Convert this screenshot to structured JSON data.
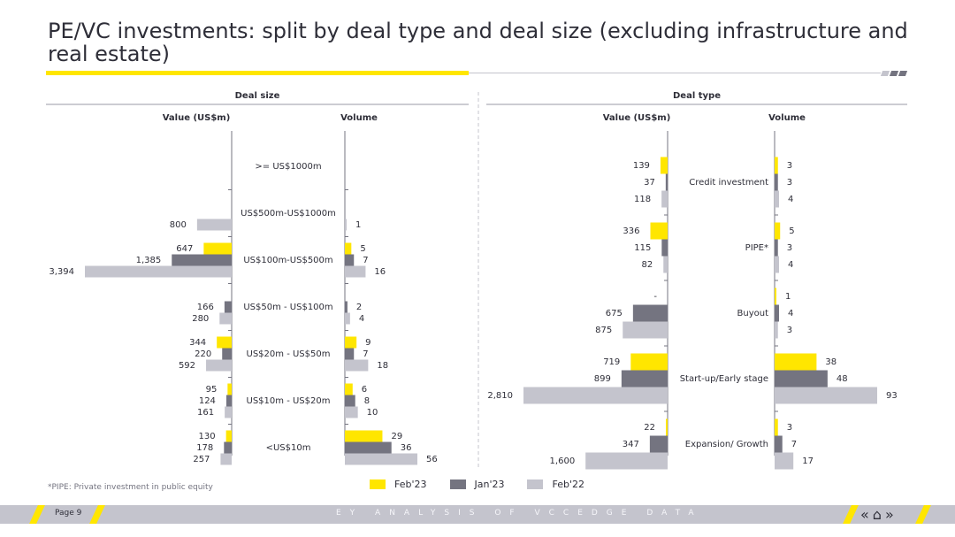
{
  "page": {
    "title": "PE/VC investments: split by deal type and deal size (excluding infrastructure and real estate)",
    "footnote": "*PIPE: Private investment in public equity",
    "page_label": "Page 9",
    "footer_tag": "EY ANALYSIS OF VCCEDGE DATA",
    "nav": {
      "prev": "«",
      "home": "⌂",
      "next": "»"
    },
    "colors": {
      "yellow": "#ffe600",
      "dark": "#747480",
      "light": "#c4c4cd",
      "text": "#2e2e38"
    }
  },
  "legend": [
    {
      "label": "Feb'23",
      "color": "#ffe600"
    },
    {
      "label": "Jan'23",
      "color": "#747480"
    },
    {
      "label": "Feb'22",
      "color": "#c4c4cd"
    }
  ],
  "chart_data": [
    {
      "type": "bar",
      "title": "Deal size",
      "value_label": "Value (US$m)",
      "volume_label": "Volume",
      "categories": [
        ">= US$1000m",
        "US$500m-US$1000m",
        "US$100m-US$500m",
        "US$50m - US$100m",
        "US$20m - US$50m",
        "US$10m - US$20m",
        "<US$10m"
      ],
      "value_series": [
        {
          "name": "Feb'23",
          "values": [
            null,
            null,
            647,
            null,
            344,
            95,
            130
          ]
        },
        {
          "name": "Jan'23",
          "values": [
            null,
            null,
            1385,
            166,
            220,
            124,
            178
          ]
        },
        {
          "name": "Feb'22",
          "values": [
            null,
            800,
            3394,
            280,
            592,
            161,
            257
          ]
        }
      ],
      "value_labels": [
        [
          null,
          null,
          "647",
          null,
          "344",
          "95",
          "130"
        ],
        [
          null,
          null,
          "1,385",
          "166",
          "220",
          "124",
          "178"
        ],
        [
          null,
          "800",
          "3,394",
          "280",
          "592",
          "161",
          "257"
        ]
      ],
      "volume_series": [
        {
          "name": "Feb'23",
          "values": [
            null,
            null,
            5,
            null,
            9,
            6,
            29
          ]
        },
        {
          "name": "Jan'23",
          "values": [
            null,
            null,
            7,
            2,
            7,
            8,
            36
          ]
        },
        {
          "name": "Feb'22",
          "values": [
            null,
            1,
            16,
            4,
            18,
            10,
            56
          ]
        }
      ],
      "volume_labels": [
        [
          null,
          null,
          "5",
          null,
          "9",
          "6",
          "29"
        ],
        [
          null,
          null,
          "7",
          "2",
          "7",
          "8",
          "36"
        ],
        [
          null,
          "1",
          "16",
          "4",
          "18",
          "10",
          "56"
        ]
      ]
    },
    {
      "type": "bar",
      "title": "Deal type",
      "value_label": "Value (US$m)",
      "volume_label": "Volume",
      "categories": [
        "Credit investment",
        "PIPE*",
        "Buyout",
        "Start-up/Early stage",
        "Expansion/ Growth"
      ],
      "value_series": [
        {
          "name": "Feb'23",
          "values": [
            139,
            336,
            0,
            719,
            22
          ]
        },
        {
          "name": "Jan'23",
          "values": [
            37,
            115,
            675,
            899,
            347
          ]
        },
        {
          "name": "Feb'22",
          "values": [
            118,
            82,
            875,
            2810,
            1600
          ]
        }
      ],
      "value_labels": [
        [
          "139",
          "336",
          "-",
          "719",
          "22"
        ],
        [
          "37",
          "115",
          "675",
          "899",
          "347"
        ],
        [
          "118",
          "82",
          "875",
          "2,810",
          "1,600"
        ]
      ],
      "volume_series": [
        {
          "name": "Feb'23",
          "values": [
            3,
            5,
            1,
            38,
            3
          ]
        },
        {
          "name": "Jan'23",
          "values": [
            3,
            3,
            4,
            48,
            7
          ]
        },
        {
          "name": "Feb'22",
          "values": [
            4,
            4,
            3,
            93,
            17
          ]
        }
      ],
      "volume_labels": [
        [
          "3",
          "5",
          "1",
          "38",
          "3"
        ],
        [
          "3",
          "3",
          "4",
          "48",
          "7"
        ],
        [
          "4",
          "4",
          "3",
          "93",
          "17"
        ]
      ]
    }
  ]
}
